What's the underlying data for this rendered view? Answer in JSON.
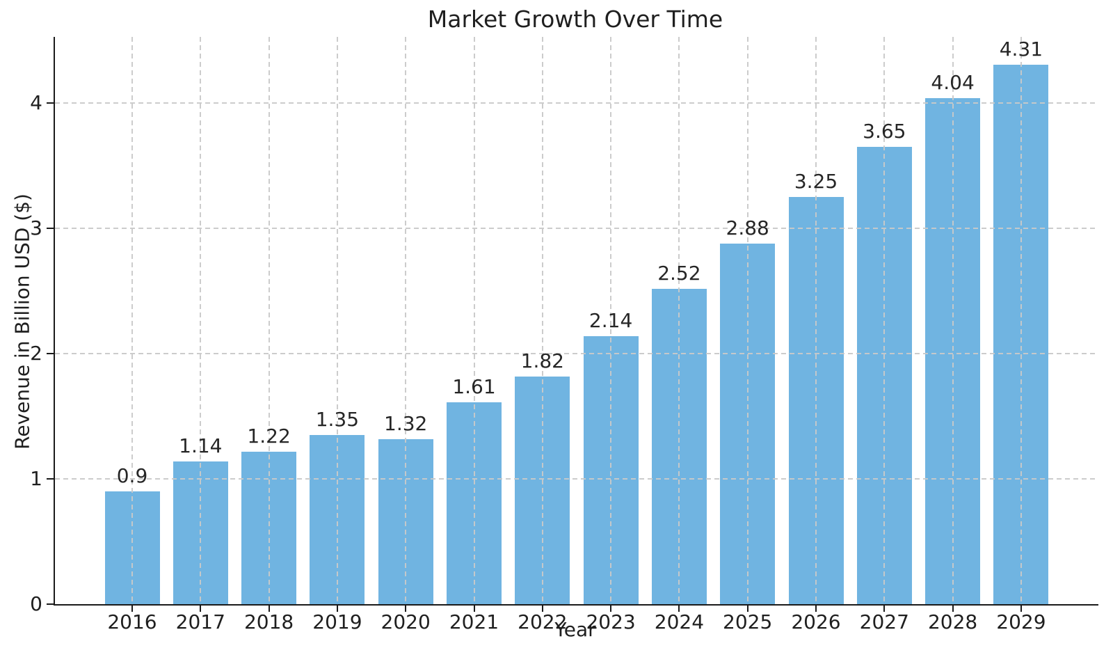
{
  "chart_data": {
    "type": "bar",
    "title": "Market Growth Over Time",
    "xlabel": "Year",
    "ylabel": "Revenue in Billion USD ($)",
    "categories": [
      "2016",
      "2017",
      "2018",
      "2019",
      "2020",
      "2021",
      "2022",
      "2023",
      "2024",
      "2025",
      "2026",
      "2027",
      "2028",
      "2029"
    ],
    "values": [
      0.9,
      1.14,
      1.22,
      1.35,
      1.32,
      1.61,
      1.82,
      2.14,
      2.52,
      2.88,
      3.25,
      3.65,
      4.04,
      4.31
    ],
    "value_labels": [
      "0.9",
      "1.14",
      "1.22",
      "1.35",
      "1.32",
      "1.61",
      "1.82",
      "2.14",
      "2.52",
      "2.88",
      "3.25",
      "3.65",
      "4.04",
      "4.31"
    ],
    "yticks": [
      0,
      1,
      2,
      3,
      4
    ],
    "ytick_labels": [
      "0",
      "1",
      "2",
      "3",
      "4"
    ],
    "ylim": [
      0,
      4.53
    ],
    "bar_color": "#70b4e1",
    "text_color": "#1f1f1f",
    "grid": {
      "style": "dashed",
      "color": "#c9c9c9",
      "horizontal": true,
      "vertical": true,
      "above_bars": true
    },
    "legend": "none",
    "spines": [
      "left",
      "bottom"
    ]
  }
}
